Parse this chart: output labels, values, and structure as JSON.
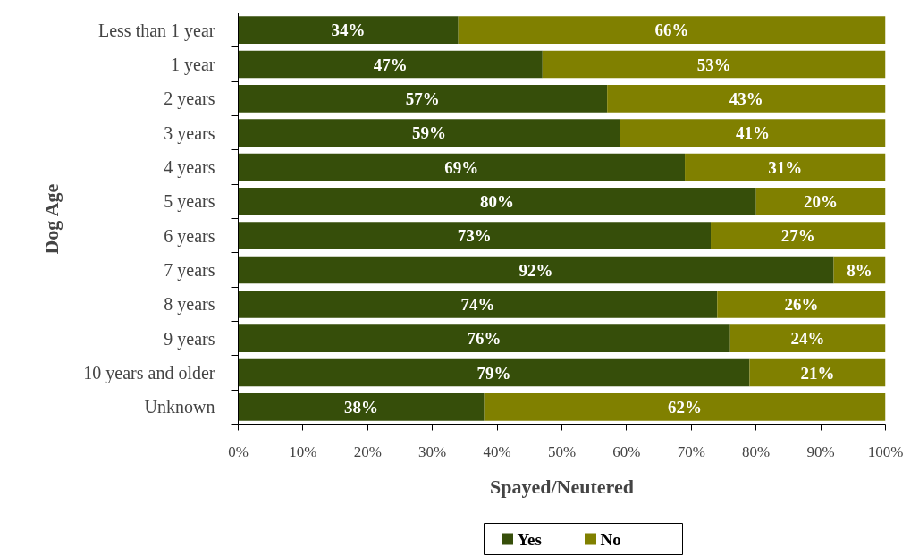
{
  "chart_data": {
    "type": "bar",
    "orientation": "horizontal",
    "stacked": true,
    "categories": [
      "Less than 1 year",
      "1 year",
      "2 years",
      "3 years",
      "4 years",
      "5 years",
      "6 years",
      "7 years",
      "8 years",
      "9 years",
      "10 years and older",
      "Unknown"
    ],
    "series": [
      {
        "name": "Yes",
        "color": "#364e0a",
        "values": [
          34,
          47,
          57,
          59,
          69,
          80,
          73,
          92,
          74,
          76,
          79,
          38
        ],
        "value_labels": [
          "34%",
          "47%",
          "57%",
          "59%",
          "69%",
          "80%",
          "73%",
          "92%",
          "74%",
          "76%",
          "79%",
          "38%"
        ]
      },
      {
        "name": "No",
        "color": "#808000",
        "values": [
          66,
          53,
          43,
          41,
          31,
          20,
          27,
          8,
          26,
          24,
          21,
          62
        ],
        "value_labels": [
          "66%",
          "53%",
          "43%",
          "41%",
          "31%",
          "20%",
          "27%",
          "8%",
          "26%",
          "24%",
          "21%",
          "62%"
        ]
      }
    ],
    "xlabel": "Spayed/Neutered",
    "ylabel": "Dog Age",
    "xlim": [
      0,
      100
    ],
    "xticks": [
      {
        "value": 0,
        "label": "0%"
      },
      {
        "value": 10,
        "label": "10%"
      },
      {
        "value": 20,
        "label": "20%"
      },
      {
        "value": 30,
        "label": "30%"
      },
      {
        "value": 40,
        "label": "40%"
      },
      {
        "value": 50,
        "label": "50%"
      },
      {
        "value": 60,
        "label": "60%"
      },
      {
        "value": 70,
        "label": "70%"
      },
      {
        "value": 80,
        "label": "80%"
      },
      {
        "value": 90,
        "label": "90%"
      },
      {
        "value": 100,
        "label": "100%"
      }
    ],
    "legend": "bottom",
    "grid": false
  }
}
